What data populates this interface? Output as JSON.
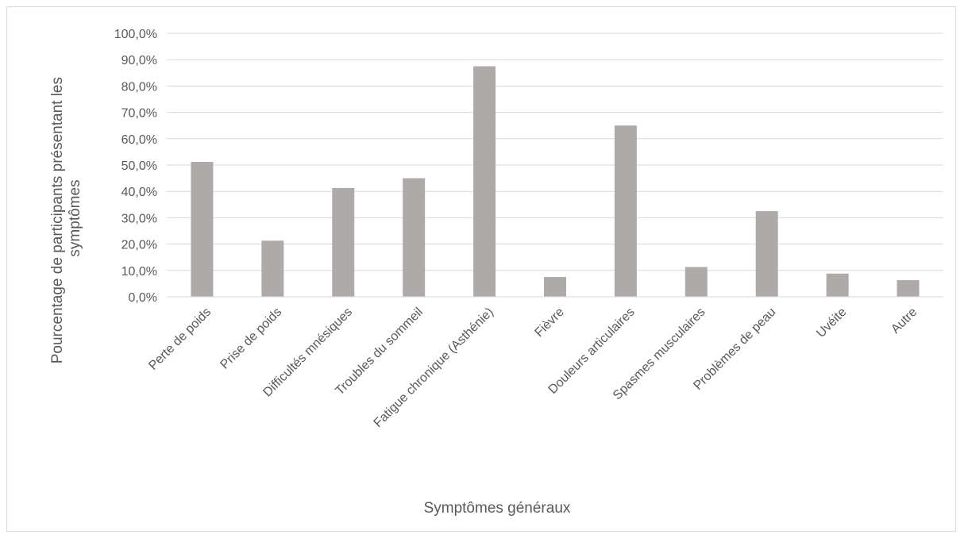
{
  "chart_data": {
    "type": "bar",
    "categories": [
      "Perte de poids",
      "Prise de poids",
      "Difficultés mnésiques",
      "Troubles du sommeil",
      "Fatigue chronique (Asthénie)",
      "Fièvre",
      "Douleurs articulaires",
      "Spasmes musculaires",
      "Problèmes de peau",
      "Uvéite",
      "Autre"
    ],
    "values": [
      51.2,
      21.3,
      41.3,
      45.0,
      87.5,
      7.5,
      65.0,
      11.3,
      32.5,
      8.8,
      6.3
    ],
    "title": "",
    "xlabel": "Symptômes généraux",
    "ylabel_lines": [
      "Pourcentage de participants  présentant les",
      "symptômes"
    ],
    "ylim": [
      0,
      100
    ],
    "yticks": [
      "0,0%",
      "10,0%",
      "20,0%",
      "30,0%",
      "40,0%",
      "50,0%",
      "60,0%",
      "70,0%",
      "80,0%",
      "90,0%",
      "100,0%"
    ],
    "grid": true,
    "legend": "none",
    "bar_color": "#aeaaaa"
  }
}
